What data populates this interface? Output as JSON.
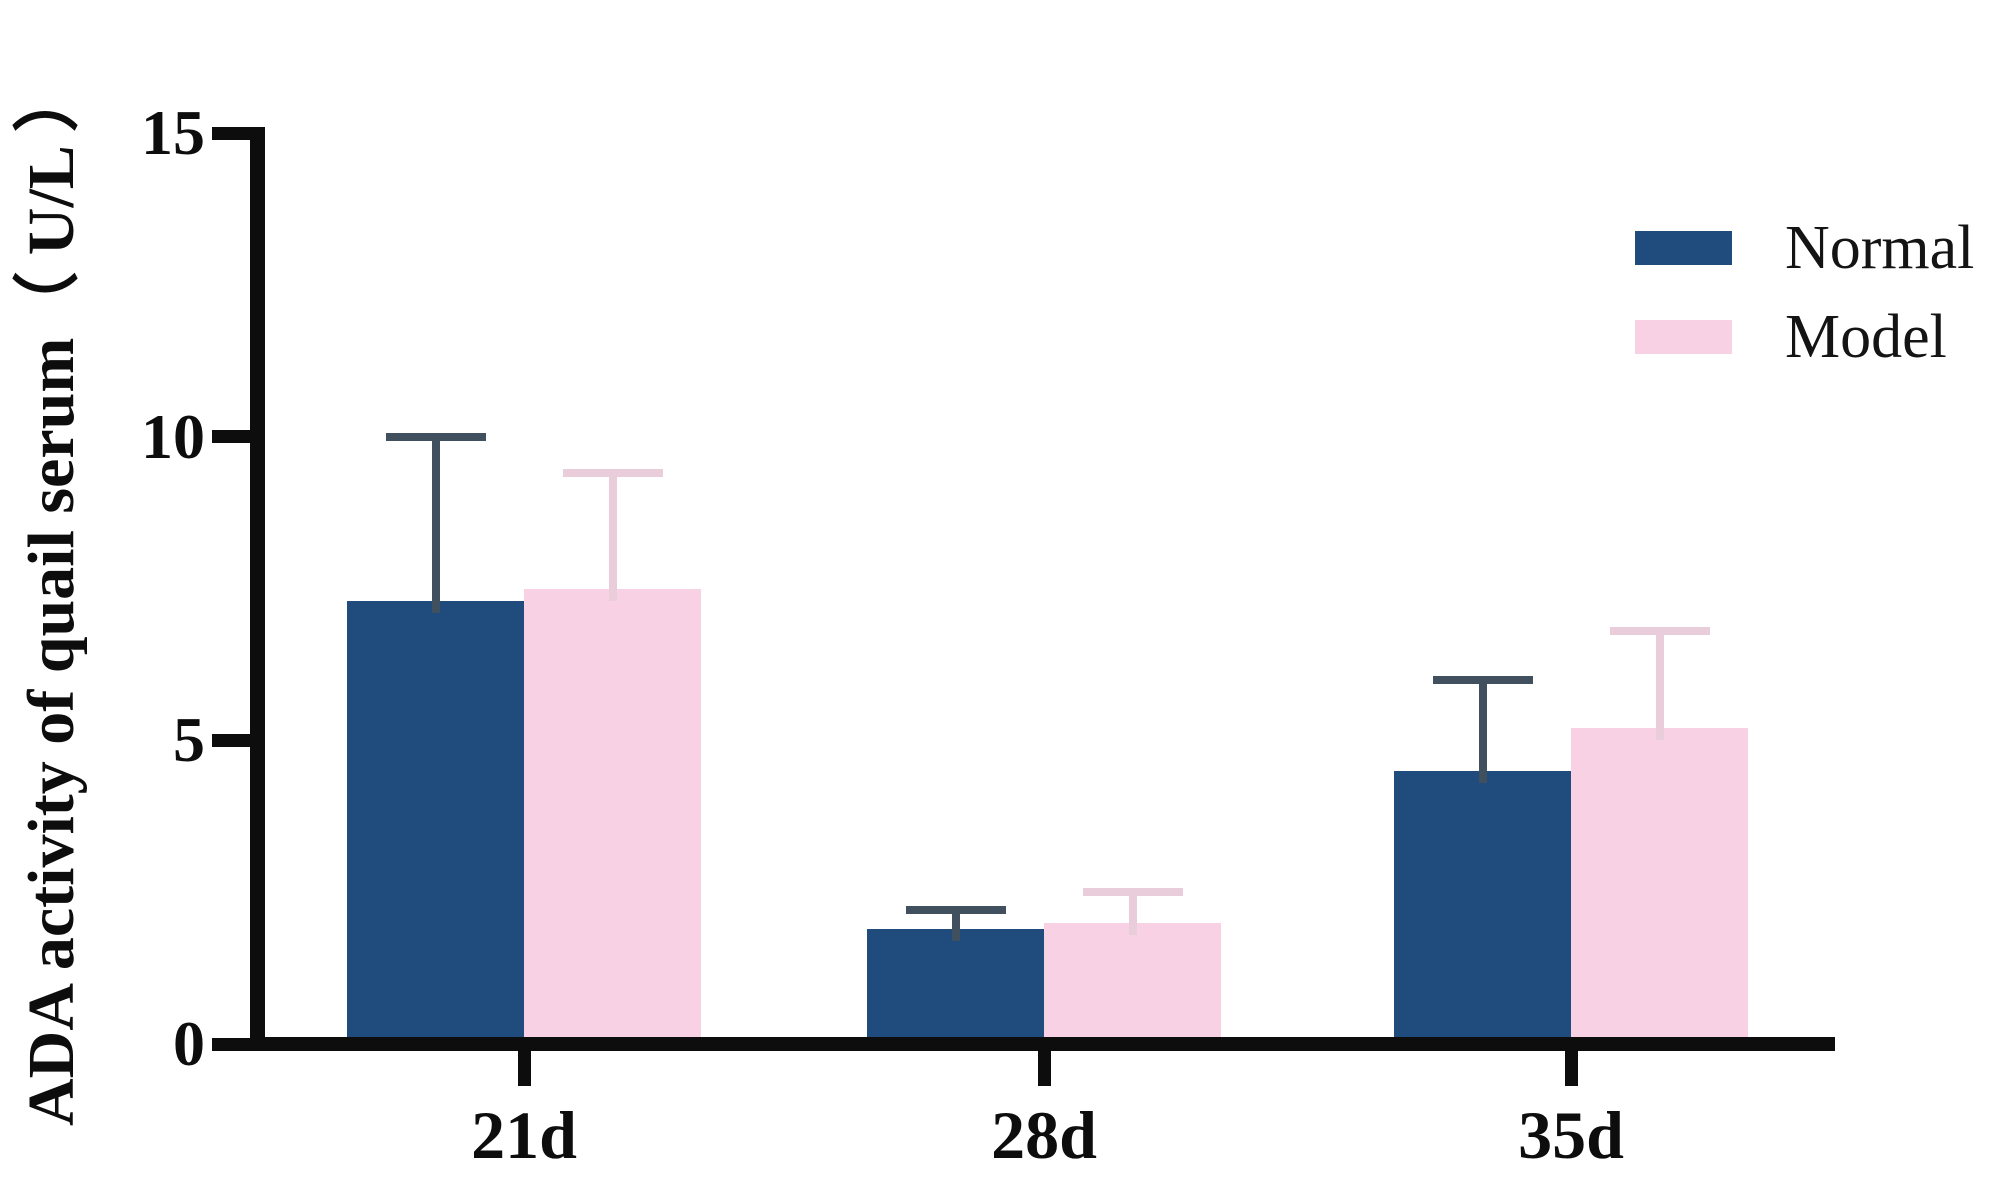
{
  "chart_data": {
    "type": "bar",
    "title": "",
    "xlabel": "",
    "ylabel": "ADA activity of quail serum（ U/L ）",
    "categories": [
      "21d",
      "28d",
      "35d"
    ],
    "series": [
      {
        "name": "Normal",
        "color": "#1f4c7c",
        "error_color": "#41505e",
        "values": [
          7.3,
          1.9,
          4.5
        ],
        "errors_plus": [
          2.7,
          0.3,
          1.5
        ]
      },
      {
        "name": "Model",
        "color": "#f8d2e4",
        "error_color": "#e9cdda",
        "values": [
          7.5,
          2.0,
          5.2
        ],
        "errors_plus": [
          1.9,
          0.5,
          1.6
        ]
      }
    ],
    "ylim": [
      0,
      15
    ],
    "yticks": [
      0,
      5,
      10,
      15
    ],
    "grid": false,
    "legend_position": "top-right",
    "error_bars": "upper-only",
    "axis_color": "#0d0d0d",
    "background_color": "#ffffff"
  }
}
